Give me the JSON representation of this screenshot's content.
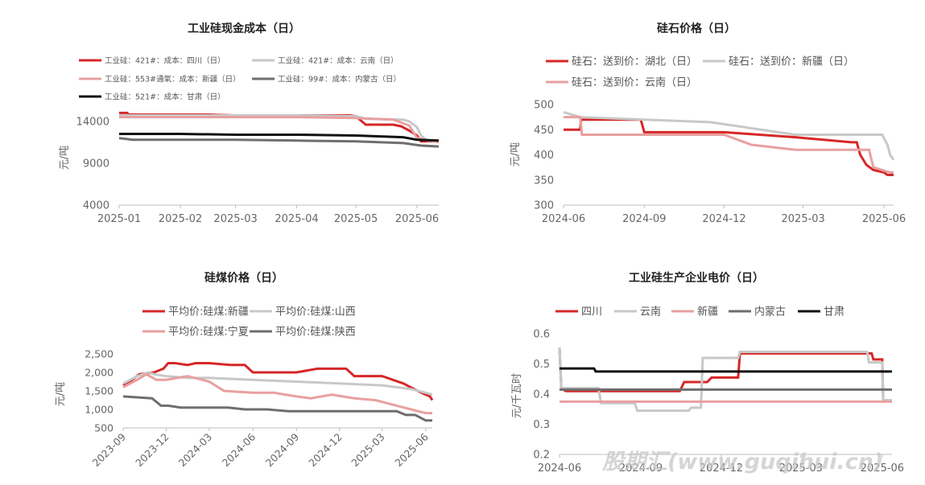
{
  "watermark": "股期汇(www.guqihui.cn)",
  "chart_data": [
    {
      "type": "line",
      "title": "工业硅现金成本（日）",
      "ylabel": "元/吨",
      "ylim": [
        4000,
        16000
      ],
      "yticks": [
        4000,
        9000,
        14000
      ],
      "xticks": [
        "2025-01",
        "2025-02",
        "2025-03",
        "2025-04",
        "2025-05",
        "2025-06"
      ],
      "x_range": [
        "2025-01-01",
        "2025-06-12"
      ],
      "grid": false,
      "legend_position": "top",
      "series": [
        {
          "name": "工业硅：421#：成本：四川（日）",
          "color": "#d62728",
          "x": [
            "2025-01-01",
            "2025-01-05",
            "2025-01-06",
            "2025-02-15",
            "2025-03-01",
            "2025-03-30",
            "2025-04-28",
            "2025-05-01",
            "2025-05-06",
            "2025-05-20",
            "2025-05-24",
            "2025-05-28",
            "2025-06-01",
            "2025-06-03",
            "2025-06-12"
          ],
          "y": [
            15000,
            15000,
            14800,
            14800,
            14700,
            14700,
            14700,
            14600,
            13600,
            13600,
            13400,
            12900,
            12300,
            11600,
            11600
          ]
        },
        {
          "name": "工业硅：421#：成本：云南（日）",
          "color": "#c8c8c8",
          "x": [
            "2025-01-01",
            "2025-02-01",
            "2025-03-01",
            "2025-04-01",
            "2025-05-01",
            "2025-05-06",
            "2025-05-25",
            "2025-05-28",
            "2025-06-01",
            "2025-06-03",
            "2025-06-06",
            "2025-06-12"
          ],
          "y": [
            14700,
            14700,
            14700,
            14700,
            14600,
            14300,
            14200,
            14000,
            13300,
            12300,
            11700,
            11600
          ]
        },
        {
          "name": "工业硅：553#通氧：成本：新疆（日）",
          "color": "#e8a0a0",
          "x": [
            "2025-01-01",
            "2025-02-01",
            "2025-03-01",
            "2025-04-01",
            "2025-05-01",
            "2025-05-20",
            "2025-05-28",
            "2025-06-01",
            "2025-06-12"
          ],
          "y": [
            14500,
            14500,
            14500,
            14500,
            14400,
            14200,
            13500,
            12000,
            11500
          ]
        },
        {
          "name": "工业硅：99#：成本：内蒙古（日）",
          "color": "#6e6e6e",
          "x": [
            "2025-01-01",
            "2025-01-08",
            "2025-02-01",
            "2025-03-01",
            "2025-04-01",
            "2025-05-01",
            "2025-05-25",
            "2025-06-03",
            "2025-06-12"
          ],
          "y": [
            12000,
            11800,
            11800,
            11800,
            11700,
            11600,
            11400,
            11100,
            11000
          ]
        },
        {
          "name": "工业硅：521#：成本：甘肃（日）",
          "color": "#111111",
          "x": [
            "2025-01-01",
            "2025-02-01",
            "2025-03-01",
            "2025-04-01",
            "2025-05-01",
            "2025-05-25",
            "2025-06-01",
            "2025-06-12"
          ],
          "y": [
            12500,
            12500,
            12400,
            12400,
            12300,
            12100,
            11800,
            11700
          ]
        }
      ]
    },
    {
      "type": "line",
      "title": "硅石价格（日）",
      "ylabel": "元/吨",
      "ylim": [
        300,
        500
      ],
      "yticks": [
        300,
        350,
        400,
        450,
        500
      ],
      "xticks": [
        "2024-06",
        "2024-09",
        "2024-12",
        "2025-03",
        "2025-06"
      ],
      "x_range": [
        "2024-06-01",
        "2025-06-12"
      ],
      "grid": false,
      "legend_position": "top",
      "series": [
        {
          "name": "硅石：送到价：湖北（日）",
          "color": "#d62728",
          "x": [
            "2024-06-01",
            "2024-06-20",
            "2024-06-21",
            "2024-08-28",
            "2024-09-01",
            "2024-12-01",
            "2025-02-20",
            "2025-04-25",
            "2025-05-01",
            "2025-05-05",
            "2025-05-12",
            "2025-05-20",
            "2025-06-01",
            "2025-06-05",
            "2025-06-12"
          ],
          "y": [
            450,
            450,
            470,
            470,
            445,
            445,
            435,
            425,
            425,
            400,
            380,
            370,
            365,
            360,
            360
          ]
        },
        {
          "name": "硅石：送到价：新疆（日）",
          "color": "#c8c8c8",
          "x": [
            "2024-06-01",
            "2024-06-20",
            "2024-11-15",
            "2025-02-20",
            "2025-05-30",
            "2025-06-05",
            "2025-06-08",
            "2025-06-12"
          ],
          "y": [
            485,
            475,
            465,
            440,
            440,
            420,
            400,
            390
          ]
        },
        {
          "name": "硅石：送到价：云南（日）",
          "color": "#e8a0a0",
          "x": [
            "2024-06-01",
            "2024-06-20",
            "2024-06-22",
            "2024-12-01",
            "2025-01-01",
            "2025-02-20",
            "2025-05-15",
            "2025-05-20",
            "2025-06-08",
            "2025-06-12"
          ],
          "y": [
            475,
            475,
            440,
            440,
            420,
            410,
            410,
            375,
            365,
            365
          ]
        }
      ]
    },
    {
      "type": "line",
      "title": "硅煤价格（日）",
      "ylabel": "元/吨",
      "ylim": [
        500,
        2500
      ],
      "yticks": [
        500,
        1000,
        1500,
        2000,
        2500
      ],
      "ytick_labels": [
        "500",
        "1,000",
        "1,500",
        "2,000",
        "2,500"
      ],
      "xticks": [
        "2023-09",
        "2023-12",
        "2024-03",
        "2024-06",
        "2024-09",
        "2024-12",
        "2025-03",
        "2025-06"
      ],
      "x_range": [
        "2023-09-01",
        "2025-06-15"
      ],
      "grid": false,
      "legend_position": "top",
      "series": [
        {
          "name": "平均价:硅煤:新疆",
          "color": "#d62728",
          "x": [
            "2023-09-01",
            "2023-09-20",
            "2023-10-05",
            "2023-11-05",
            "2023-11-25",
            "2023-12-05",
            "2023-12-20",
            "2024-01-15",
            "2024-02-01",
            "2024-03-01",
            "2024-04-15",
            "2024-05-15",
            "2024-06-01",
            "2024-09-01",
            "2024-10-15",
            "2024-12-15",
            "2025-01-01",
            "2025-03-01",
            "2025-04-15",
            "2025-05-15",
            "2025-06-01",
            "2025-06-10",
            "2025-06-15"
          ],
          "y": [
            1650,
            1800,
            1950,
            2000,
            2100,
            2250,
            2250,
            2200,
            2250,
            2250,
            2200,
            2200,
            2000,
            2000,
            2100,
            2100,
            1900,
            1900,
            1700,
            1500,
            1400,
            1350,
            1250
          ]
        },
        {
          "name": "平均价:硅煤:山西",
          "color": "#c8c8c8",
          "x": [
            "2023-09-01",
            "2023-10-01",
            "2023-10-25",
            "2023-11-05",
            "2023-12-01",
            "2024-01-15",
            "2024-03-01",
            "2024-06-01",
            "2024-09-01",
            "2024-12-01",
            "2025-03-01",
            "2025-05-01",
            "2025-06-01",
            "2025-06-15"
          ],
          "y": [
            1700,
            1900,
            2000,
            1950,
            1900,
            1850,
            1850,
            1800,
            1750,
            1700,
            1650,
            1550,
            1450,
            1400
          ]
        },
        {
          "name": "平均价:硅煤:宁夏",
          "color": "#e8a0a0",
          "x": [
            "2023-09-01",
            "2023-10-01",
            "2023-10-20",
            "2023-11-10",
            "2023-12-01",
            "2024-01-15",
            "2024-02-15",
            "2024-03-01",
            "2024-04-01",
            "2024-06-01",
            "2024-07-15",
            "2024-09-01",
            "2024-10-01",
            "2024-11-15",
            "2025-01-01",
            "2025-02-15",
            "2025-04-01",
            "2025-05-01",
            "2025-06-01",
            "2025-06-15"
          ],
          "y": [
            1600,
            1800,
            1950,
            1800,
            1800,
            1900,
            1800,
            1750,
            1500,
            1450,
            1450,
            1350,
            1300,
            1400,
            1300,
            1250,
            1100,
            1000,
            900,
            900
          ]
        },
        {
          "name": "平均价:硅煤:陕西",
          "color": "#6e6e6e",
          "x": [
            "2023-09-01",
            "2023-11-01",
            "2023-11-20",
            "2023-12-05",
            "2024-01-01",
            "2024-03-01",
            "2024-04-10",
            "2024-05-15",
            "2024-07-01",
            "2024-08-15",
            "2024-10-01",
            "2024-12-01",
            "2025-02-01",
            "2025-04-01",
            "2025-04-20",
            "2025-05-10",
            "2025-06-01",
            "2025-06-15"
          ],
          "y": [
            1350,
            1300,
            1100,
            1100,
            1050,
            1050,
            1050,
            1000,
            1000,
            950,
            950,
            950,
            950,
            950,
            850,
            850,
            700,
            700
          ]
        }
      ]
    },
    {
      "type": "line",
      "title": "工业硅生产企业电价（日）",
      "ylabel": "元/千瓦时",
      "ylim": [
        0.2,
        0.6
      ],
      "yticks": [
        0.2,
        0.3,
        0.4,
        0.5,
        0.6
      ],
      "xticks": [
        "2024-06",
        "2024-09",
        "2024-12",
        "2025-03",
        "2025-06"
      ],
      "x_range": [
        "2024-06-01",
        "2025-06-12"
      ],
      "grid": false,
      "legend_position": "top",
      "series": [
        {
          "name": "四川",
          "color": "#d62728",
          "x": [
            "2024-06-01",
            "2024-06-03",
            "2024-06-08",
            "2024-07-15",
            "2024-10-15",
            "2024-10-20",
            "2024-11-15",
            "2024-11-20",
            "2024-12-20",
            "2024-12-22",
            "2025-05-20",
            "2025-05-22",
            "2025-06-01",
            "2025-06-02",
            "2025-06-12"
          ],
          "y": [
            0.555,
            0.42,
            0.41,
            0.41,
            0.41,
            0.44,
            0.44,
            0.455,
            0.455,
            0.535,
            0.535,
            0.515,
            0.515,
            0.38,
            0.38
          ]
        },
        {
          "name": "云南",
          "color": "#c8c8c8",
          "x": [
            "2024-06-01",
            "2024-06-03",
            "2024-07-15",
            "2024-07-18",
            "2024-08-25",
            "2024-08-28",
            "2024-10-25",
            "2024-10-28",
            "2024-11-08",
            "2024-11-10",
            "2024-12-20",
            "2024-12-22",
            "2025-05-15",
            "2025-05-17",
            "2025-06-01",
            "2025-06-02",
            "2025-06-12"
          ],
          "y": [
            0.555,
            0.42,
            0.42,
            0.37,
            0.37,
            0.345,
            0.345,
            0.355,
            0.355,
            0.52,
            0.52,
            0.54,
            0.54,
            0.505,
            0.505,
            0.38,
            0.38
          ]
        },
        {
          "name": "新疆",
          "color": "#e8a0a0",
          "x": [
            "2024-06-01",
            "2025-06-12"
          ],
          "y": [
            0.375,
            0.375
          ]
        },
        {
          "name": "内蒙古",
          "color": "#6e6e6e",
          "x": [
            "2024-06-01",
            "2025-06-12"
          ],
          "y": [
            0.415,
            0.415
          ]
        },
        {
          "name": "甘肃",
          "color": "#111111",
          "x": [
            "2024-06-01",
            "2024-07-10",
            "2024-07-12",
            "2025-06-12"
          ],
          "y": [
            0.485,
            0.485,
            0.475,
            0.475
          ]
        }
      ]
    }
  ]
}
